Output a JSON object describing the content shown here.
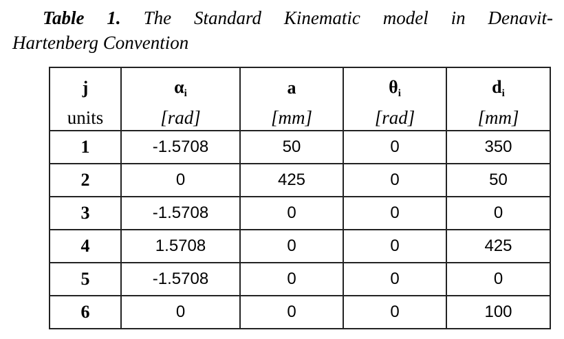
{
  "caption": {
    "label": "Table 1.",
    "line1_rest": "The Standard Kinematic model in Denavit-",
    "line2": "Hartenberg Convention"
  },
  "table": {
    "headers": [
      {
        "symbol": "j",
        "sub": ""
      },
      {
        "symbol": "α",
        "sub": "i"
      },
      {
        "symbol": "a",
        "sub": ""
      },
      {
        "symbol": "θ",
        "sub": "i"
      },
      {
        "symbol": "d",
        "sub": "i"
      }
    ],
    "units": [
      "units",
      "[rad]",
      "[mm]",
      "[rad]",
      "[mm]"
    ],
    "rows": [
      {
        "j": "1",
        "alpha": "-1.5708",
        "a": "50",
        "theta": "0",
        "d": "350"
      },
      {
        "j": "2",
        "alpha": "0",
        "a": "425",
        "theta": "0",
        "d": "50"
      },
      {
        "j": "3",
        "alpha": "-1.5708",
        "a": "0",
        "theta": "0",
        "d": "0"
      },
      {
        "j": "4",
        "alpha": "1.5708",
        "a": "0",
        "theta": "0",
        "d": "425"
      },
      {
        "j": "5",
        "alpha": "-1.5708",
        "a": "0",
        "theta": "0",
        "d": "0"
      },
      {
        "j": "6",
        "alpha": "0",
        "a": "0",
        "theta": "0",
        "d": "100"
      }
    ]
  }
}
